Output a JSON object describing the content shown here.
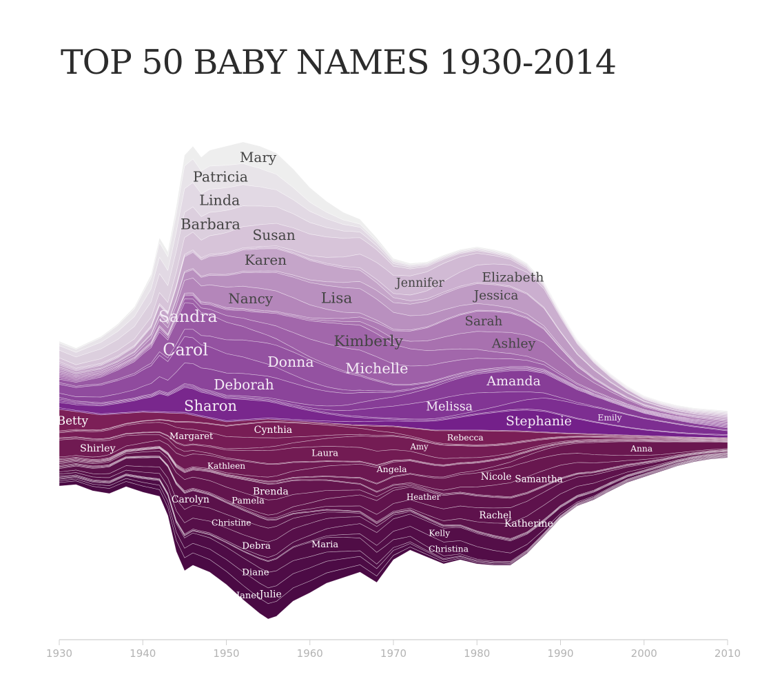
{
  "chart_data": {
    "type": "area",
    "title": "TOP 50 BABY NAMES 1930-2014",
    "xlabel": "",
    "ylabel": "",
    "x_ticks": [
      1930,
      1940,
      1950,
      1960,
      1970,
      1980,
      1990,
      2000,
      2010
    ],
    "xlim": [
      1930,
      2010
    ],
    "grid": false,
    "legend": "none",
    "colors": {
      "upper_light": "#eeeeee",
      "upper_mid": "#a46aac",
      "upper_dark": "#74208a",
      "lower_top": "#7c1f57",
      "lower_bottom": "#4a0a44",
      "axis": "#cfcfcf"
    },
    "series": [
      {
        "name": "Mary",
        "label_x": 1953.8
      },
      {
        "name": "Patricia",
        "label_x": 1949.3
      },
      {
        "name": "Linda",
        "label_x": 1949.2
      },
      {
        "name": "Barbara",
        "label_x": 1948.1
      },
      {
        "name": "Susan",
        "label_x": 1955.7
      },
      {
        "name": "Jennifer",
        "label_x": 1973.2
      },
      {
        "name": "Elizabeth",
        "label_x": 1984.3
      },
      {
        "name": "Karen",
        "label_x": 1954.7
      },
      {
        "name": "Jessica",
        "label_x": 1982.3
      },
      {
        "name": "Lisa",
        "label_x": 1963.2
      },
      {
        "name": "Nancy",
        "label_x": 1952.9
      },
      {
        "name": "Sarah",
        "label_x": 1980.8
      },
      {
        "name": "Ashley",
        "label_x": 1984.4
      },
      {
        "name": "Kimberly",
        "label_x": 1967.0
      },
      {
        "name": "Michelle",
        "label_x": 1968.0
      },
      {
        "name": "Sandra",
        "label_x": 1945.4
      },
      {
        "name": "Donna",
        "label_x": 1957.7
      },
      {
        "name": "Carol",
        "label_x": 1945.1
      },
      {
        "name": "Deborah",
        "label_x": 1952.1
      },
      {
        "name": "Amanda",
        "label_x": 1984.4
      },
      {
        "name": "Melissa",
        "label_x": 1976.7
      },
      {
        "name": "Emily",
        "label_x": 1995.9
      },
      {
        "name": "Sharon",
        "label_x": 1948.1
      },
      {
        "name": "Stephanie",
        "label_x": 1987.4
      },
      {
        "name": "Betty",
        "label_x": 1931.6
      },
      {
        "name": "Rebecca",
        "label_x": 1978.6
      },
      {
        "name": "Cynthia",
        "label_x": 1955.6
      },
      {
        "name": "Margaret",
        "label_x": 1945.8
      },
      {
        "name": "Amy",
        "label_x": 1973.1
      },
      {
        "name": "Laura",
        "label_x": 1961.8
      },
      {
        "name": "Shirley",
        "label_x": 1934.6
      },
      {
        "name": "Kathleen",
        "label_x": 1950.0
      },
      {
        "name": "Angela",
        "label_x": 1969.8
      },
      {
        "name": "Anna",
        "label_x": 1999.7
      },
      {
        "name": "Nicole",
        "label_x": 1982.3
      },
      {
        "name": "Samantha",
        "label_x": 1987.4
      },
      {
        "name": "Brenda",
        "label_x": 1955.3
      },
      {
        "name": "Pamela",
        "label_x": 1952.6
      },
      {
        "name": "Heather",
        "label_x": 1973.6
      },
      {
        "name": "Rachel",
        "label_x": 1982.2
      },
      {
        "name": "Katherine",
        "label_x": 1986.2
      },
      {
        "name": "Carolyn",
        "label_x": 1945.7
      },
      {
        "name": "Christine",
        "label_x": 1950.6
      },
      {
        "name": "Debra",
        "label_x": 1953.6
      },
      {
        "name": "Kelly",
        "label_x": 1975.5
      },
      {
        "name": "Christina",
        "label_x": 1976.6
      },
      {
        "name": "Maria",
        "label_x": 1961.8
      },
      {
        "name": "Diane",
        "label_x": 1953.5
      },
      {
        "name": "Julie",
        "label_x": 1955.3
      },
      {
        "name": "Janet",
        "label_x": 1952.6
      }
    ]
  }
}
